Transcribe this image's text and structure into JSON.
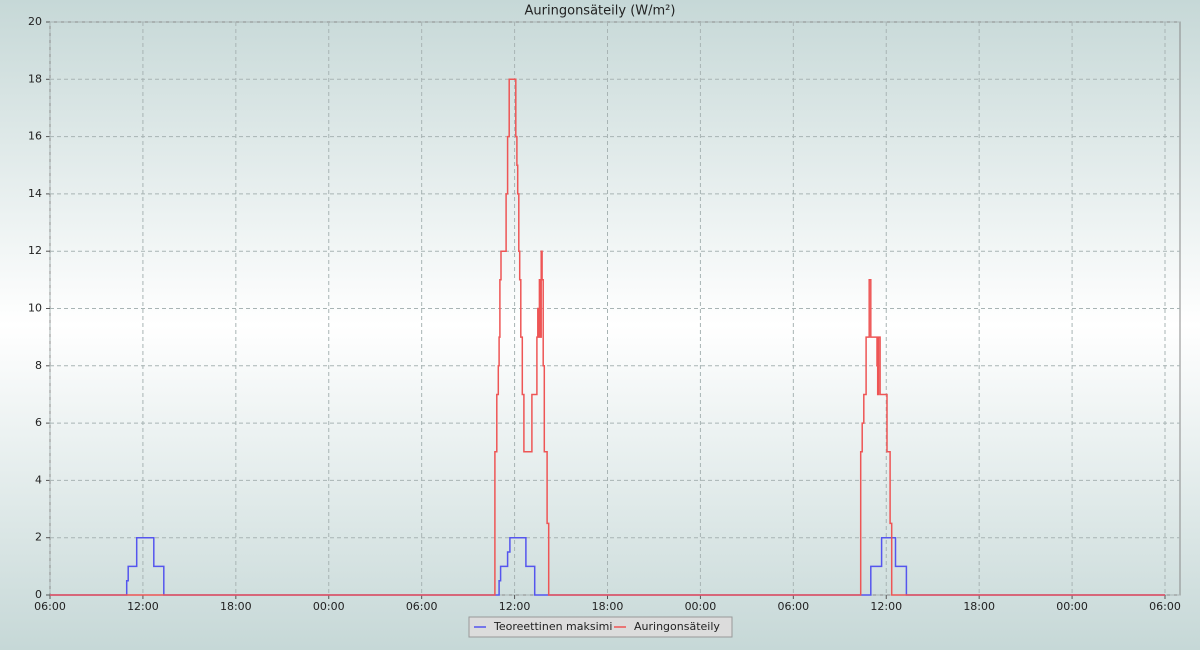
{
  "chart_data": {
    "type": "step-line",
    "title": "Auringonsäteily (W/m²)",
    "xlim": [
      0,
      72
    ],
    "xticks": [
      {
        "value": 0,
        "label": "06:00"
      },
      {
        "value": 6,
        "label": "12:00"
      },
      {
        "value": 12,
        "label": "18:00"
      },
      {
        "value": 18,
        "label": "00:00"
      },
      {
        "value": 24,
        "label": "06:00"
      },
      {
        "value": 30,
        "label": "12:00"
      },
      {
        "value": 36,
        "label": "18:00"
      },
      {
        "value": 42,
        "label": "00:00"
      },
      {
        "value": 48,
        "label": "06:00"
      },
      {
        "value": 54,
        "label": "12:00"
      },
      {
        "value": 60,
        "label": "18:00"
      },
      {
        "value": 66,
        "label": "00:00"
      },
      {
        "value": 72,
        "label": "06:00"
      }
    ],
    "ylim": [
      0,
      20
    ],
    "yticks": [
      0,
      2,
      4,
      6,
      8,
      10,
      12,
      14,
      16,
      18,
      20
    ],
    "grid": true,
    "series": [
      {
        "name": "Teoreettinen maksimi",
        "color": "#5555ee",
        "x": [
          0,
          4.95,
          5.05,
          5.6,
          6.7,
          7.35,
          29.0,
          29.1,
          29.55,
          29.7,
          30.73,
          31.3,
          53.0,
          53.7,
          54.6,
          55.3
        ],
        "values": [
          0,
          0.5,
          1,
          2,
          1,
          0,
          0.5,
          1,
          1.5,
          2,
          1,
          0,
          1,
          2,
          1,
          0
        ]
      },
      {
        "name": "Auringonsäteily",
        "color": "#ee5555",
        "x": [
          0,
          28.73,
          28.85,
          28.95,
          29.0,
          29.05,
          29.12,
          29.45,
          29.55,
          29.65,
          30.08,
          30.15,
          30.2,
          30.27,
          30.33,
          30.4,
          30.5,
          30.6,
          31.12,
          31.44,
          31.5,
          31.55,
          31.6,
          31.65,
          31.72,
          31.78,
          31.85,
          31.92,
          32.1,
          32.2,
          52.35,
          52.45,
          52.55,
          52.7,
          52.9,
          53.0,
          53.4,
          53.45,
          53.5,
          53.6,
          54.05,
          54.25,
          54.35
        ],
        "values": [
          0,
          5,
          7,
          8,
          9,
          11,
          12,
          14,
          16,
          18,
          16,
          15,
          14,
          12,
          11,
          9,
          7,
          5,
          7,
          9,
          10,
          9,
          11,
          9,
          12,
          11,
          8,
          5,
          2.5,
          0,
          5,
          6,
          7,
          9,
          11,
          9,
          8,
          7,
          9,
          7,
          5,
          2.5,
          0
        ]
      }
    ]
  }
}
